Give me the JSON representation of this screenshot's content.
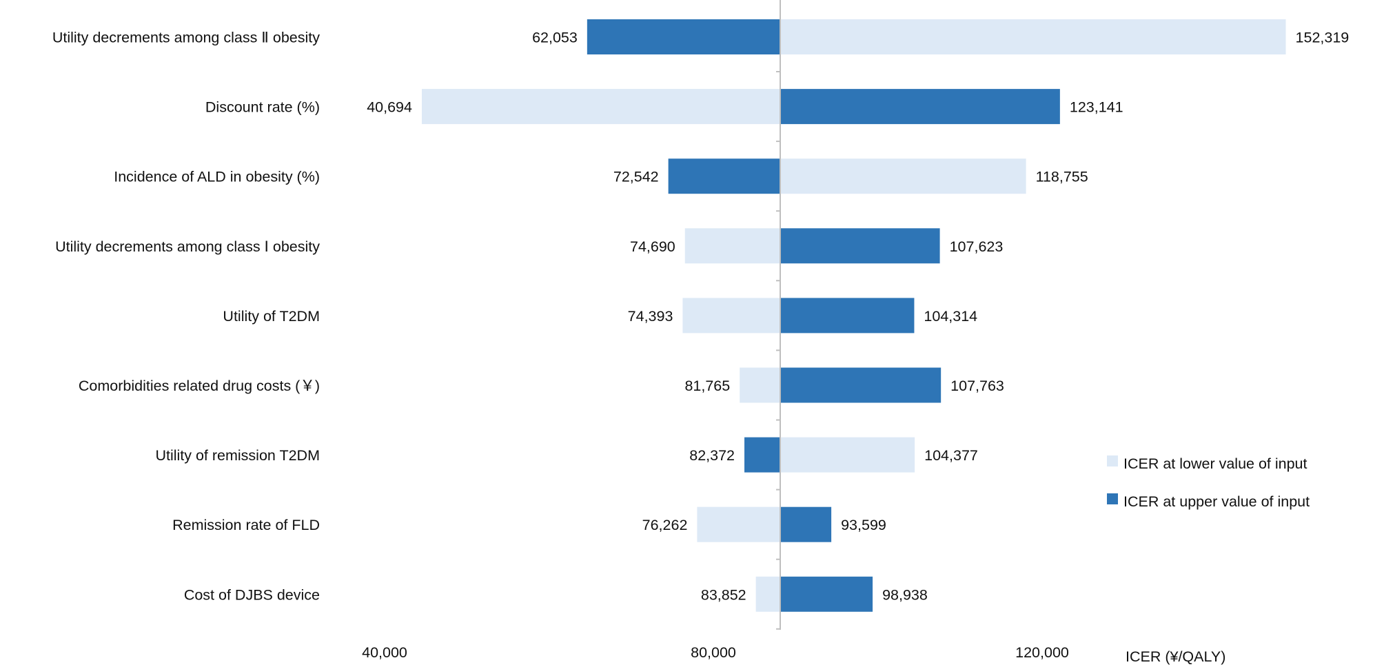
{
  "chart_data": {
    "type": "bar",
    "subtype": "tornado",
    "orientation": "horizontal",
    "base_value": 87000,
    "categories": [
      "Utility decrements among class Ⅱ obesity",
      "Discount rate (%)",
      "Incidence of ALD in obesity (%)",
      "Utility decrements among class Ⅰ obesity",
      "Utility of T2DM",
      "Comorbidities related drug costs (￥)",
      "Utility of remission T2DM",
      "Remission rate of FLD",
      "Cost of DJBS device"
    ],
    "series": [
      {
        "name": "ICER at lower value of input",
        "color": "#dde9f6",
        "values": [
          152319,
          40694,
          118755,
          74690,
          74393,
          81765,
          104377,
          76262,
          83852
        ],
        "labels": [
          "152,319",
          "40,694",
          "118,755",
          "74,690",
          "74,393",
          "81,765",
          "104,377",
          "76,262",
          "83,852"
        ]
      },
      {
        "name": "ICER at upper value of input",
        "color": "#2e75b6",
        "values": [
          62053,
          123141,
          72542,
          107623,
          104314,
          107763,
          82372,
          93599,
          98938
        ],
        "labels": [
          "62,053",
          "123,141",
          "72,542",
          "107,623",
          "104,314",
          "107,763",
          "82,372",
          "93,599",
          "98,938"
        ]
      }
    ],
    "xticks": [
      40000,
      80000,
      120000
    ],
    "xtick_labels": [
      "40,000",
      "80,000",
      "120,000"
    ],
    "xlabel": "ICER (¥/QALY)",
    "xlim": [
      40000,
      152319
    ],
    "legend_position": "right",
    "axis_color": "#bfbfbf"
  }
}
